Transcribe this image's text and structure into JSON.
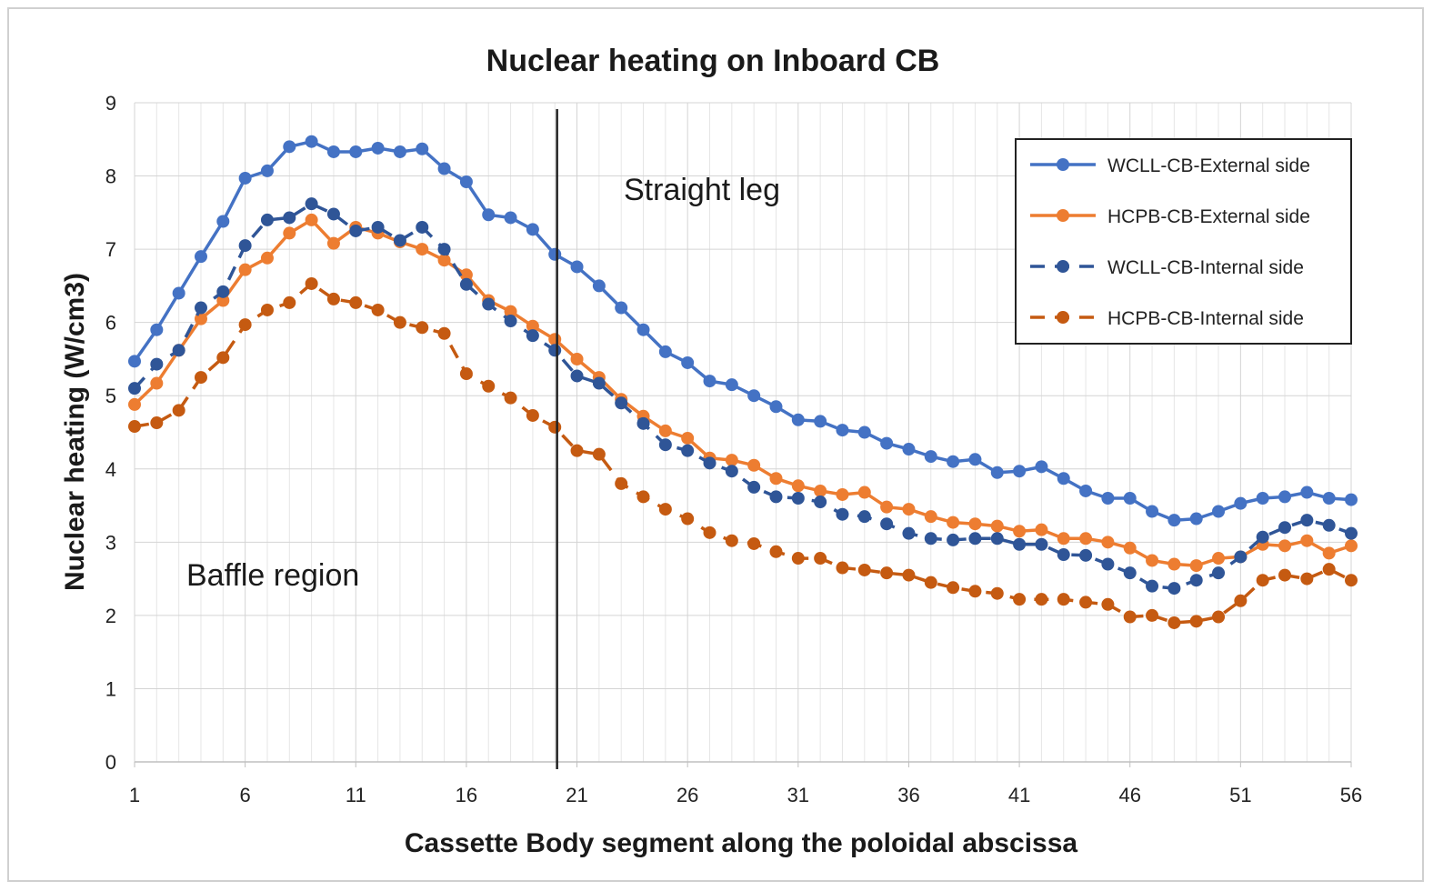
{
  "chart_data": {
    "type": "line",
    "title": "Nuclear heating on Inboard CB",
    "xlabel": "Cassette Body segment along the poloidal  abscissa",
    "ylabel": "Nuclear heating (W/cm3)",
    "xlim": [
      1,
      56
    ],
    "ylim": [
      0,
      9
    ],
    "xticks": [
      1,
      6,
      11,
      16,
      21,
      26,
      31,
      36,
      41,
      46,
      51,
      56
    ],
    "yticks": [
      0,
      1,
      2,
      3,
      4,
      5,
      6,
      7,
      8,
      9
    ],
    "grid": true,
    "legend_position": "top-right",
    "annotations": [
      {
        "text": "Straight leg"
      },
      {
        "text": "Baffle region"
      }
    ],
    "vertical_line_x": 20.1,
    "x": [
      1,
      2,
      3,
      4,
      5,
      6,
      7,
      8,
      9,
      10,
      11,
      12,
      13,
      14,
      15,
      16,
      17,
      18,
      19,
      20,
      21,
      22,
      23,
      24,
      25,
      26,
      27,
      28,
      29,
      30,
      31,
      32,
      33,
      34,
      35,
      36,
      37,
      38,
      39,
      40,
      41,
      42,
      43,
      44,
      45,
      46,
      47,
      48,
      49,
      50,
      51,
      52,
      53,
      54,
      55,
      56
    ],
    "series": [
      {
        "name": "WCLL-CB-External side",
        "color": "#4472C4",
        "style": "solid",
        "values": [
          5.47,
          5.9,
          6.4,
          6.9,
          7.38,
          7.97,
          8.07,
          8.4,
          8.47,
          8.33,
          8.33,
          8.38,
          8.33,
          8.37,
          8.1,
          7.92,
          7.47,
          7.43,
          7.27,
          6.93,
          6.76,
          6.5,
          6.2,
          5.9,
          5.6,
          5.45,
          5.2,
          5.15,
          5.0,
          4.85,
          4.67,
          4.65,
          4.53,
          4.5,
          4.35,
          4.27,
          4.17,
          4.1,
          4.13,
          3.95,
          3.97,
          4.03,
          3.87,
          3.7,
          3.6,
          3.6,
          3.42,
          3.3,
          3.32,
          3.42,
          3.53,
          3.6,
          3.62,
          3.68,
          3.6,
          3.58
        ]
      },
      {
        "name": "HCPB-CB-External side",
        "color": "#ED7D31",
        "style": "solid",
        "values": [
          4.88,
          5.17,
          5.62,
          6.05,
          6.3,
          6.72,
          6.88,
          7.22,
          7.4,
          7.08,
          7.3,
          7.22,
          7.1,
          7.0,
          6.85,
          6.65,
          6.3,
          6.15,
          5.95,
          5.77,
          5.5,
          5.25,
          4.95,
          4.72,
          4.52,
          4.42,
          4.15,
          4.12,
          4.05,
          3.87,
          3.77,
          3.7,
          3.65,
          3.68,
          3.48,
          3.45,
          3.35,
          3.27,
          3.25,
          3.22,
          3.15,
          3.17,
          3.05,
          3.05,
          3.0,
          2.92,
          2.75,
          2.7,
          2.68,
          2.78,
          2.8,
          2.97,
          2.95,
          3.02,
          2.85,
          2.95
        ]
      },
      {
        "name": "WCLL-CB-Internal side",
        "color": "#2F5597",
        "style": "dashed",
        "values": [
          5.1,
          5.43,
          5.62,
          6.2,
          6.42,
          7.05,
          7.4,
          7.43,
          7.62,
          7.48,
          7.25,
          7.3,
          7.12,
          7.3,
          7.0,
          6.52,
          6.25,
          6.02,
          5.82,
          5.62,
          5.27,
          5.17,
          4.9,
          4.62,
          4.33,
          4.25,
          4.08,
          3.97,
          3.75,
          3.62,
          3.6,
          3.55,
          3.38,
          3.35,
          3.25,
          3.12,
          3.05,
          3.03,
          3.05,
          3.05,
          2.97,
          2.97,
          2.83,
          2.82,
          2.7,
          2.58,
          2.4,
          2.37,
          2.48,
          2.58,
          2.8,
          3.07,
          3.2,
          3.3,
          3.23,
          3.12
        ]
      },
      {
        "name": "HCPB-CB-Internal side",
        "color": "#C55A11",
        "style": "dashed",
        "values": [
          4.58,
          4.63,
          4.8,
          5.25,
          5.52,
          5.97,
          6.17,
          6.27,
          6.53,
          6.32,
          6.27,
          6.17,
          6.0,
          5.93,
          5.85,
          5.3,
          5.13,
          4.97,
          4.73,
          4.57,
          4.25,
          4.2,
          3.8,
          3.62,
          3.45,
          3.32,
          3.13,
          3.02,
          2.98,
          2.87,
          2.78,
          2.78,
          2.65,
          2.62,
          2.58,
          2.55,
          2.45,
          2.38,
          2.33,
          2.3,
          2.22,
          2.22,
          2.22,
          2.18,
          2.15,
          1.98,
          2.0,
          1.9,
          1.92,
          1.98,
          2.2,
          2.48,
          2.55,
          2.5,
          2.63,
          2.48
        ]
      }
    ]
  }
}
